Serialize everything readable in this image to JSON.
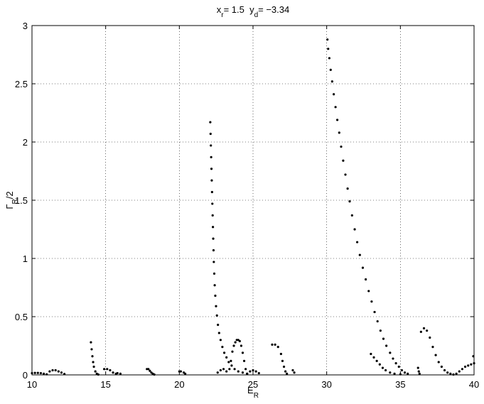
{
  "chart_data": {
    "type": "scatter",
    "title": [
      "x",
      "r",
      "= 1.5  y",
      "d",
      "= −3.34"
    ],
    "xlabel": [
      "E",
      "R"
    ],
    "ylabel": [
      "Γ",
      "R",
      "/2"
    ],
    "xlim": [
      10,
      40
    ],
    "ylim": [
      0,
      3
    ],
    "xticks": [
      10,
      15,
      20,
      25,
      30,
      35,
      40
    ],
    "yticks": [
      0,
      0.5,
      1,
      1.5,
      2,
      2.5,
      3
    ],
    "grid": true,
    "series": [
      {
        "color": "#000000",
        "x": [
          10.0,
          10.2,
          10.4,
          10.6,
          10.8,
          11.0,
          11.2,
          11.4,
          11.6,
          11.8,
          12.0,
          12.2,
          14.0,
          14.05,
          14.1,
          14.15,
          14.2,
          14.3,
          14.4,
          14.5,
          14.9,
          15.1,
          15.3,
          15.5,
          15.7,
          15.8,
          16.0,
          17.8,
          17.9,
          18.0,
          18.1,
          18.2,
          18.3,
          20.0,
          20.1,
          20.3,
          20.4,
          22.1,
          22.12,
          22.14,
          22.16,
          22.18,
          22.2,
          22.22,
          22.24,
          22.26,
          22.28,
          22.3,
          22.32,
          22.34,
          22.37,
          22.4,
          22.44,
          22.49,
          22.55,
          22.62,
          22.7,
          22.8,
          22.92,
          23.05,
          23.2,
          23.35,
          23.55,
          23.75,
          24.0,
          24.3,
          24.6,
          22.6,
          22.8,
          23.0,
          23.2,
          23.4,
          23.5,
          23.6,
          23.7,
          23.8,
          23.9,
          24.0,
          24.1,
          24.2,
          24.3,
          24.4,
          24.5,
          24.6,
          24.8,
          25.0,
          25.2,
          25.4,
          26.3,
          26.5,
          26.7,
          26.9,
          27.0,
          27.1,
          27.2,
          27.3,
          27.7,
          27.8,
          30.05,
          30.1,
          30.18,
          30.27,
          30.37,
          30.48,
          30.6,
          30.72,
          30.85,
          30.98,
          31.12,
          31.27,
          31.42,
          31.56,
          31.72,
          31.9,
          32.07,
          32.25,
          32.45,
          32.65,
          32.85,
          33.05,
          33.25,
          33.45,
          33.65,
          33.85,
          34.05,
          34.3,
          34.5,
          34.7,
          34.9,
          35.1,
          35.3,
          35.5,
          33.0,
          33.2,
          33.4,
          33.6,
          33.8,
          34.0,
          34.3,
          34.6,
          35.0,
          36.2,
          36.25,
          36.3,
          36.4,
          36.6,
          36.8,
          37.0,
          37.2,
          37.4,
          37.6,
          37.8,
          38.0,
          38.2,
          38.4,
          38.6,
          38.8,
          39.0,
          39.2,
          39.4,
          39.6,
          39.8,
          40.0,
          39.95
        ],
        "values": [
          0.015,
          0.017,
          0.017,
          0.015,
          0.01,
          0.005,
          0.03,
          0.04,
          0.04,
          0.03,
          0.02,
          0.008,
          0.28,
          0.22,
          0.16,
          0.11,
          0.07,
          0.03,
          0.01,
          0.003,
          0.05,
          0.05,
          0.04,
          0.02,
          0.01,
          0.015,
          0.01,
          0.05,
          0.05,
          0.035,
          0.02,
          0.01,
          0.003,
          0.03,
          0.03,
          0.02,
          0.01,
          2.17,
          2.07,
          1.97,
          1.87,
          1.77,
          1.67,
          1.57,
          1.47,
          1.37,
          1.27,
          1.17,
          1.07,
          0.97,
          0.87,
          0.77,
          0.68,
          0.59,
          0.51,
          0.43,
          0.36,
          0.3,
          0.24,
          0.19,
          0.15,
          0.11,
          0.08,
          0.05,
          0.03,
          0.02,
          0.01,
          0.02,
          0.04,
          0.05,
          0.03,
          0.05,
          0.12,
          0.2,
          0.25,
          0.28,
          0.3,
          0.3,
          0.29,
          0.25,
          0.19,
          0.12,
          0.05,
          0.01,
          0.03,
          0.04,
          0.03,
          0.015,
          0.26,
          0.26,
          0.24,
          0.18,
          0.12,
          0.07,
          0.03,
          0.01,
          0.04,
          0.02,
          2.88,
          2.8,
          2.72,
          2.62,
          2.52,
          2.41,
          2.3,
          2.19,
          2.08,
          1.96,
          1.84,
          1.72,
          1.6,
          1.49,
          1.37,
          1.25,
          1.14,
          1.03,
          0.92,
          0.82,
          0.72,
          0.63,
          0.54,
          0.46,
          0.38,
          0.31,
          0.25,
          0.19,
          0.14,
          0.1,
          0.07,
          0.04,
          0.02,
          0.01,
          0.18,
          0.15,
          0.12,
          0.09,
          0.06,
          0.04,
          0.02,
          0.01,
          0.005,
          0.06,
          0.03,
          0.01,
          0.37,
          0.4,
          0.38,
          0.32,
          0.24,
          0.17,
          0.11,
          0.07,
          0.04,
          0.02,
          0.01,
          0.003,
          0.01,
          0.03,
          0.05,
          0.07,
          0.08,
          0.09,
          0.1,
          0.16
        ]
      }
    ]
  }
}
